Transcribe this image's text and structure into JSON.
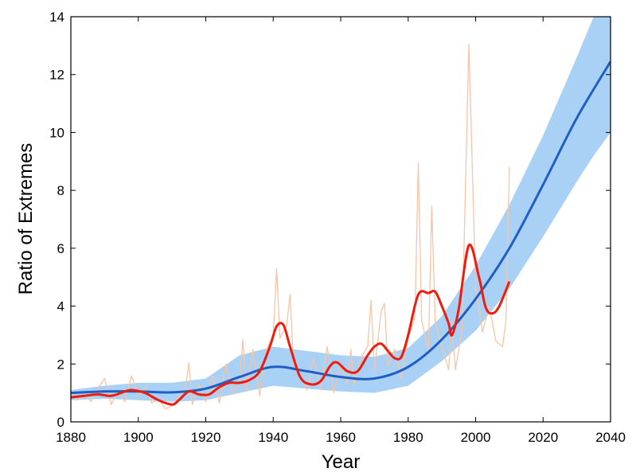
{
  "chart_data": {
    "type": "line",
    "xlabel": "Year",
    "ylabel": "Ratio of Extremes",
    "xlim": [
      1880,
      2040
    ],
    "ylim": [
      0,
      14
    ],
    "x_ticks": [
      "1880",
      "1900",
      "1920",
      "1940",
      "1960",
      "1980",
      "2000",
      "2020",
      "2040"
    ],
    "y_ticks": [
      "0",
      "2",
      "4",
      "6",
      "8",
      "10",
      "12",
      "14"
    ],
    "grid": false,
    "legend": "none",
    "colors": {
      "band": "#a9d0f5",
      "trend": "#1f5fc4",
      "smoothed": "#ee1c0e",
      "annual": "#f7c4a6"
    },
    "series": [
      {
        "kind": "band",
        "x": [
          1880,
          1890,
          1900,
          1910,
          1920,
          1930,
          1940,
          1950,
          1960,
          1970,
          1980,
          1990,
          2000,
          2010,
          2020,
          2030,
          2035,
          2040
        ],
        "lower": [
          0.75,
          0.8,
          0.75,
          0.7,
          0.75,
          1.0,
          1.25,
          1.15,
          1.05,
          1.0,
          1.25,
          2.1,
          3.15,
          4.6,
          6.4,
          8.3,
          9.2,
          10.0
        ],
        "upper": [
          1.1,
          1.25,
          1.35,
          1.35,
          1.5,
          2.3,
          2.6,
          2.45,
          2.3,
          2.25,
          2.55,
          3.65,
          5.4,
          7.5,
          9.9,
          12.6,
          14.0,
          14.5
        ]
      },
      {
        "kind": "trend",
        "x": [
          1880,
          1890,
          1900,
          1910,
          1920,
          1930,
          1940,
          1950,
          1960,
          1970,
          1980,
          1990,
          2000,
          2010,
          2020,
          2030,
          2040
        ],
        "values": [
          1.0,
          1.05,
          1.05,
          1.02,
          1.15,
          1.55,
          1.9,
          1.75,
          1.55,
          1.5,
          1.9,
          2.85,
          4.25,
          6.0,
          8.2,
          10.5,
          12.45
        ]
      },
      {
        "kind": "smoothed",
        "x": [
          1880,
          1884,
          1888,
          1892,
          1896,
          1898,
          1902,
          1906,
          1910,
          1912,
          1915,
          1918,
          1921,
          1924,
          1927,
          1930,
          1933,
          1936,
          1939,
          1941,
          1943,
          1945,
          1948,
          1951,
          1954,
          1957,
          1959,
          1962,
          1965,
          1968,
          1970,
          1972,
          1974,
          1976,
          1978,
          1980,
          1983,
          1986,
          1988,
          1990,
          1992,
          1993,
          1995,
          1998,
          2001,
          2003,
          2005,
          2007,
          2010
        ],
        "values": [
          0.85,
          0.9,
          0.95,
          0.9,
          1.05,
          1.1,
          1.0,
          0.75,
          0.6,
          0.75,
          1.05,
          0.95,
          0.95,
          1.2,
          1.35,
          1.35,
          1.45,
          1.75,
          2.6,
          3.3,
          3.35,
          2.6,
          1.55,
          1.3,
          1.4,
          1.95,
          2.05,
          1.75,
          1.75,
          2.3,
          2.6,
          2.7,
          2.45,
          2.2,
          2.25,
          3.0,
          4.4,
          4.45,
          4.5,
          4.0,
          3.4,
          3.0,
          3.9,
          6.1,
          5.0,
          3.95,
          3.75,
          4.0,
          4.85
        ]
      },
      {
        "kind": "annual",
        "x": [
          1880,
          1882,
          1884,
          1886,
          1888,
          1890,
          1892,
          1894,
          1896,
          1898,
          1900,
          1902,
          1904,
          1906,
          1908,
          1910,
          1912,
          1914,
          1915,
          1916,
          1918,
          1920,
          1922,
          1924,
          1926,
          1928,
          1930,
          1931,
          1932,
          1934,
          1936,
          1938,
          1940,
          1941,
          1942,
          1944,
          1945,
          1946,
          1948,
          1950,
          1952,
          1954,
          1956,
          1958,
          1960,
          1962,
          1963,
          1964,
          1966,
          1968,
          1969,
          1970,
          1972,
          1973,
          1974,
          1976,
          1978,
          1980,
          1982,
          1983,
          1984,
          1986,
          1987,
          1988,
          1990,
          1992,
          1993,
          1994,
          1996,
          1998,
          2000,
          2002,
          2004,
          2006,
          2008,
          2009,
          2010
        ],
        "values": [
          1.0,
          0.75,
          0.95,
          0.7,
          1.15,
          1.5,
          0.6,
          1.1,
          0.7,
          1.6,
          0.9,
          1.2,
          0.65,
          0.8,
          0.45,
          0.55,
          0.85,
          1.2,
          2.05,
          0.6,
          1.3,
          0.7,
          1.6,
          0.65,
          2.0,
          0.95,
          1.3,
          2.85,
          1.05,
          2.5,
          0.9,
          2.5,
          3.0,
          5.3,
          2.9,
          3.35,
          4.4,
          2.0,
          1.6,
          1.1,
          2.2,
          1.1,
          2.6,
          1.0,
          2.0,
          1.3,
          2.5,
          1.3,
          2.2,
          2.6,
          4.2,
          1.8,
          3.8,
          4.1,
          1.9,
          2.5,
          1.5,
          2.9,
          3.6,
          8.95,
          3.5,
          2.5,
          7.45,
          3.5,
          2.6,
          1.8,
          3.5,
          1.8,
          3.2,
          13.05,
          4.7,
          3.1,
          4.0,
          2.8,
          2.6,
          3.5,
          8.8
        ]
      }
    ]
  }
}
